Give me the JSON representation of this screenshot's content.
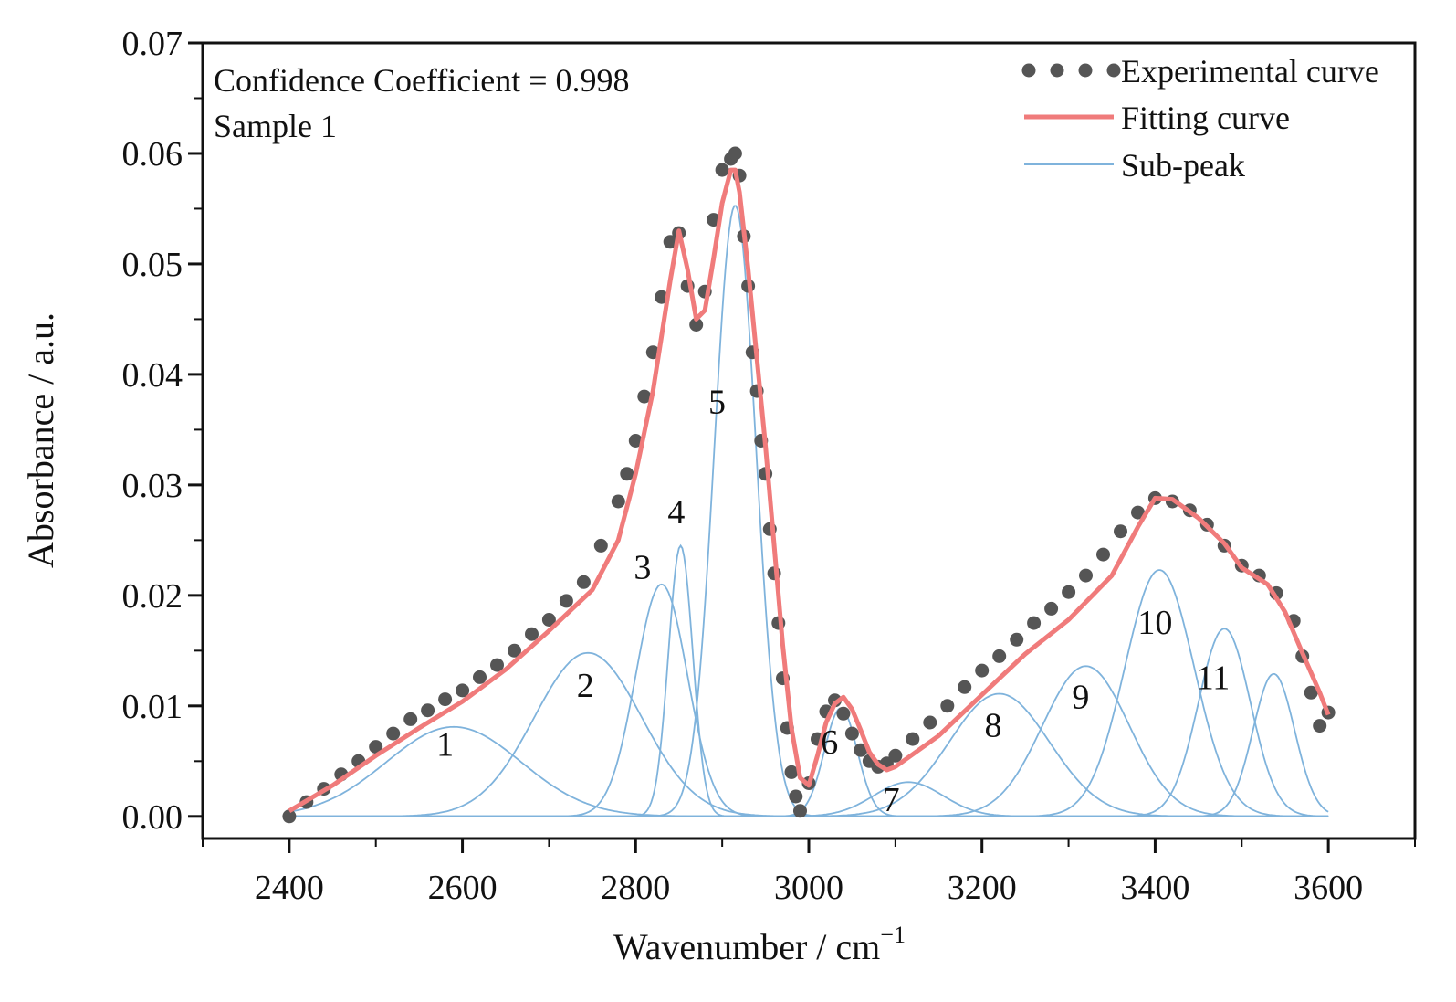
{
  "chart_data": {
    "type": "line",
    "title": "",
    "xlabel": "Wavenumber / cm",
    "xlabel_sup": "−1",
    "ylabel": "Absorbance / a.u.",
    "xlim": [
      2300,
      3700
    ],
    "ylim": [
      -0.002,
      0.07
    ],
    "xticks": [
      2400,
      2600,
      2800,
      3000,
      3200,
      3400,
      3600
    ],
    "xtick_labels": [
      "2400",
      "2600",
      "2800",
      "3000",
      "3200",
      "3400",
      "3600"
    ],
    "yticks": [
      0.0,
      0.01,
      0.02,
      0.03,
      0.04,
      0.05,
      0.06,
      0.07
    ],
    "ytick_labels": [
      "0.00",
      "0.01",
      "0.02",
      "0.03",
      "0.04",
      "0.05",
      "0.06",
      "0.07"
    ],
    "annotations": [
      "Confidence Coefficient = 0.998",
      "Sample 1"
    ],
    "legend": {
      "position": "top-right",
      "entries": [
        "Experimental curve",
        "Fitting curve",
        "Sub-peak"
      ]
    },
    "colors": {
      "experimental": "#555555",
      "fitting": "#f07b7b",
      "subpeak": "#7fb3dc"
    },
    "experimental": {
      "x": [
        2400,
        2420,
        2440,
        2460,
        2480,
        2500,
        2520,
        2540,
        2560,
        2580,
        2600,
        2620,
        2640,
        2660,
        2680,
        2700,
        2720,
        2740,
        2760,
        2780,
        2790,
        2800,
        2810,
        2820,
        2830,
        2840,
        2850,
        2860,
        2870,
        2880,
        2890,
        2900,
        2910,
        2915,
        2920,
        2925,
        2930,
        2935,
        2940,
        2945,
        2950,
        2955,
        2960,
        2965,
        2970,
        2975,
        2980,
        2985,
        2990,
        3000,
        3010,
        3020,
        3030,
        3040,
        3050,
        3060,
        3070,
        3080,
        3090,
        3100,
        3120,
        3140,
        3160,
        3180,
        3200,
        3220,
        3240,
        3260,
        3280,
        3300,
        3320,
        3340,
        3360,
        3380,
        3400,
        3420,
        3440,
        3460,
        3480,
        3500,
        3520,
        3540,
        3560,
        3570,
        3580,
        3590,
        3600
      ],
      "y": [
        0.0,
        0.0013,
        0.0025,
        0.0038,
        0.005,
        0.0063,
        0.0075,
        0.0088,
        0.0096,
        0.0106,
        0.0114,
        0.0126,
        0.0137,
        0.015,
        0.0165,
        0.0178,
        0.0195,
        0.0212,
        0.0245,
        0.0285,
        0.031,
        0.034,
        0.038,
        0.042,
        0.047,
        0.052,
        0.0528,
        0.048,
        0.0445,
        0.0475,
        0.054,
        0.0585,
        0.0595,
        0.06,
        0.058,
        0.0525,
        0.048,
        0.042,
        0.0385,
        0.034,
        0.031,
        0.026,
        0.022,
        0.0175,
        0.0125,
        0.008,
        0.004,
        0.0018,
        0.0005,
        0.003,
        0.007,
        0.0095,
        0.0105,
        0.0093,
        0.0075,
        0.006,
        0.005,
        0.0045,
        0.0048,
        0.0055,
        0.007,
        0.0085,
        0.01,
        0.0117,
        0.0132,
        0.0145,
        0.016,
        0.0175,
        0.0188,
        0.0203,
        0.0218,
        0.0237,
        0.0258,
        0.0275,
        0.0288,
        0.0285,
        0.0277,
        0.0264,
        0.0245,
        0.0227,
        0.0218,
        0.0202,
        0.0177,
        0.0145,
        0.0112,
        0.0082,
        0.0094
      ]
    },
    "fitting": {
      "x": [
        2400,
        2450,
        2500,
        2550,
        2600,
        2650,
        2700,
        2750,
        2780,
        2800,
        2820,
        2840,
        2850,
        2860,
        2870,
        2880,
        2890,
        2900,
        2910,
        2915,
        2920,
        2930,
        2940,
        2950,
        2960,
        2970,
        2980,
        2990,
        3000,
        3010,
        3020,
        3030,
        3040,
        3050,
        3060,
        3070,
        3080,
        3090,
        3100,
        3150,
        3200,
        3250,
        3300,
        3350,
        3380,
        3400,
        3420,
        3450,
        3480,
        3500,
        3530,
        3550,
        3570,
        3590,
        3600
      ],
      "y": [
        0.0005,
        0.0028,
        0.0055,
        0.008,
        0.0104,
        0.0133,
        0.0168,
        0.0205,
        0.025,
        0.031,
        0.0385,
        0.0485,
        0.053,
        0.0495,
        0.045,
        0.0458,
        0.0505,
        0.0555,
        0.0585,
        0.0585,
        0.0565,
        0.0495,
        0.0415,
        0.0335,
        0.0245,
        0.0155,
        0.008,
        0.0035,
        0.0028,
        0.0055,
        0.0085,
        0.0102,
        0.0108,
        0.0097,
        0.0078,
        0.0058,
        0.0047,
        0.0042,
        0.0045,
        0.0073,
        0.011,
        0.0147,
        0.0178,
        0.0218,
        0.0262,
        0.0288,
        0.0287,
        0.027,
        0.0247,
        0.0225,
        0.021,
        0.0185,
        0.0148,
        0.0112,
        0.0092
      ]
    },
    "subpeaks": [
      {
        "label": "1",
        "center": 2590,
        "height": 0.0081,
        "sigma": 78,
        "label_x": 2580,
        "label_y": 0.0055
      },
      {
        "label": "2",
        "center": 2745,
        "height": 0.0148,
        "sigma": 62,
        "label_x": 2742,
        "label_y": 0.0108
      },
      {
        "label": "3",
        "center": 2830,
        "height": 0.021,
        "sigma": 30,
        "label_x": 2808,
        "label_y": 0.0215
      },
      {
        "label": "4",
        "center": 2852,
        "height": 0.0245,
        "sigma": 14,
        "label_x": 2847,
        "label_y": 0.0265
      },
      {
        "label": "5",
        "center": 2915,
        "height": 0.0553,
        "sigma": 24,
        "label_x": 2894,
        "label_y": 0.0365
      },
      {
        "label": "6",
        "center": 3037,
        "height": 0.0098,
        "sigma": 19,
        "label_x": 3024,
        "label_y": 0.0057
      },
      {
        "label": "7",
        "center": 3115,
        "height": 0.0031,
        "sigma": 40,
        "label_x": 3095,
        "label_y": 0.0005
      },
      {
        "label": "8",
        "center": 3220,
        "height": 0.0111,
        "sigma": 58,
        "label_x": 3213,
        "label_y": 0.0072
      },
      {
        "label": "9",
        "center": 3320,
        "height": 0.0136,
        "sigma": 50,
        "label_x": 3314,
        "label_y": 0.0098
      },
      {
        "label": "10",
        "center": 3405,
        "height": 0.0223,
        "sigma": 40,
        "label_x": 3400,
        "label_y": 0.0165
      },
      {
        "label": "11",
        "center": 3480,
        "height": 0.017,
        "sigma": 30,
        "label_x": 3467,
        "label_y": 0.0115
      },
      {
        "label": "",
        "center": 3537,
        "height": 0.0129,
        "sigma": 24,
        "label_x": 3537,
        "label_y": 0.0
      }
    ]
  }
}
